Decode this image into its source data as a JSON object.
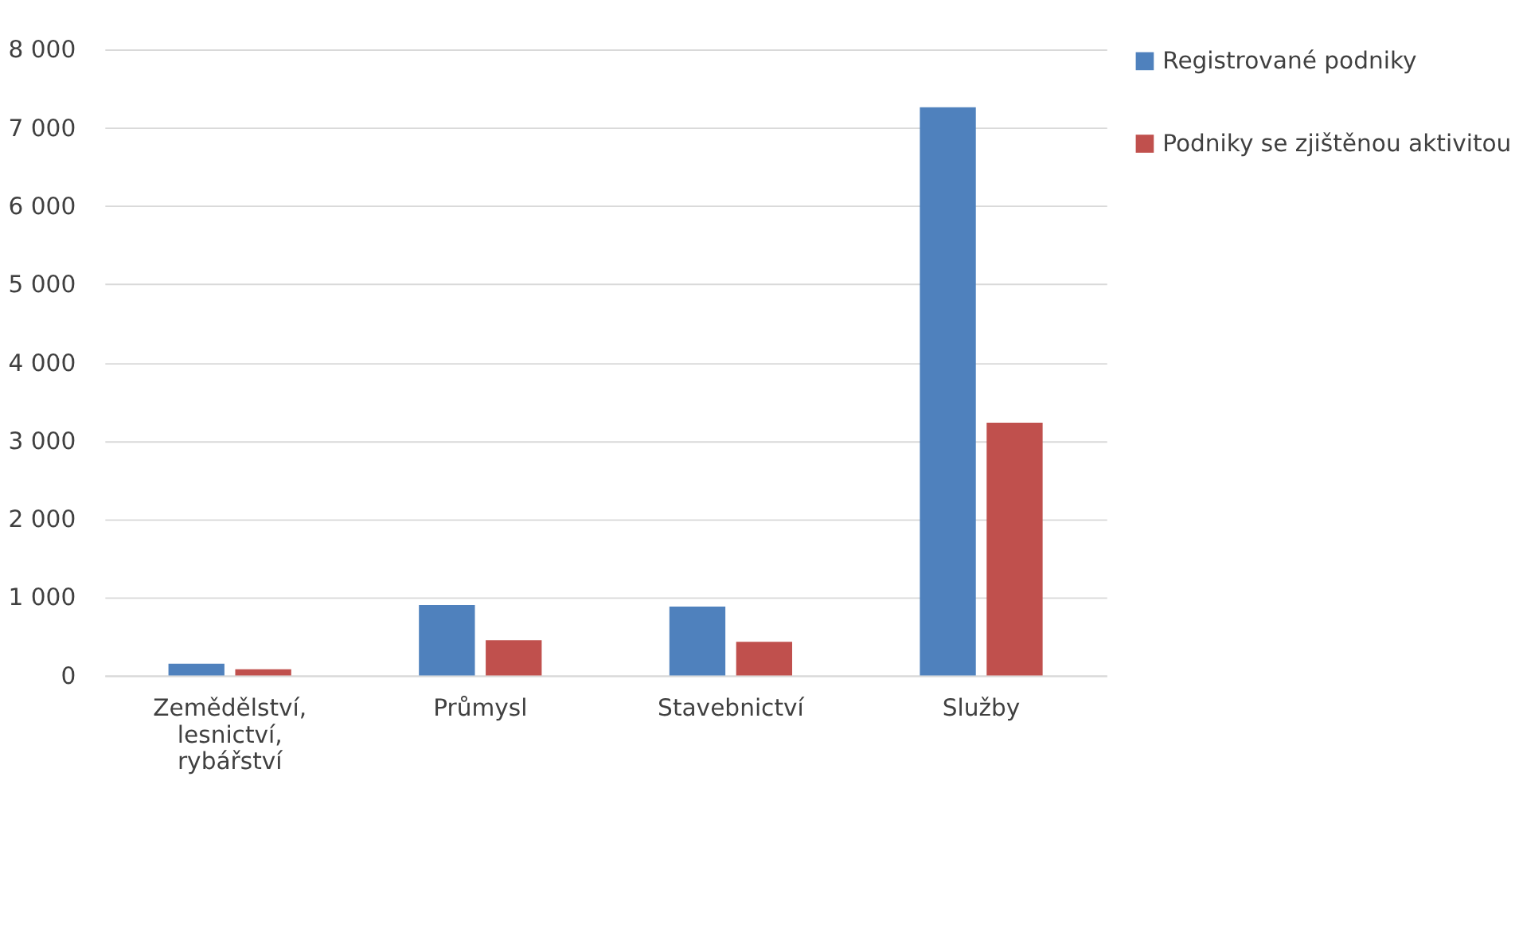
{
  "chart_data": {
    "type": "bar",
    "categories": [
      "Zemědělství, lesnictví, rybářství",
      "Průmysl",
      "Stavebnictví",
      "Služby"
    ],
    "series": [
      {
        "name": "Registrované podniky",
        "color": "#4f81bd",
        "values": [
          150,
          900,
          880,
          7260
        ]
      },
      {
        "name": "Podniky se zjištěnou aktivitou",
        "color": "#c0504d",
        "values": [
          80,
          450,
          430,
          3230
        ]
      }
    ],
    "ylim": [
      0,
      8000
    ],
    "yticks": [
      0,
      {
        "value": 1000,
        "label": "1 000"
      },
      {
        "value": 2000,
        "label": "2 000"
      },
      {
        "value": 3000,
        "label": "3 000"
      },
      {
        "value": 4000,
        "label": "4 000"
      },
      {
        "value": 5000,
        "label": "5 000"
      },
      {
        "value": 6000,
        "label": "6 000"
      },
      {
        "value": 7000,
        "label": "7 000"
      },
      {
        "value": 8000,
        "label": "8 000"
      }
    ],
    "grid": "y",
    "legend": "right"
  }
}
